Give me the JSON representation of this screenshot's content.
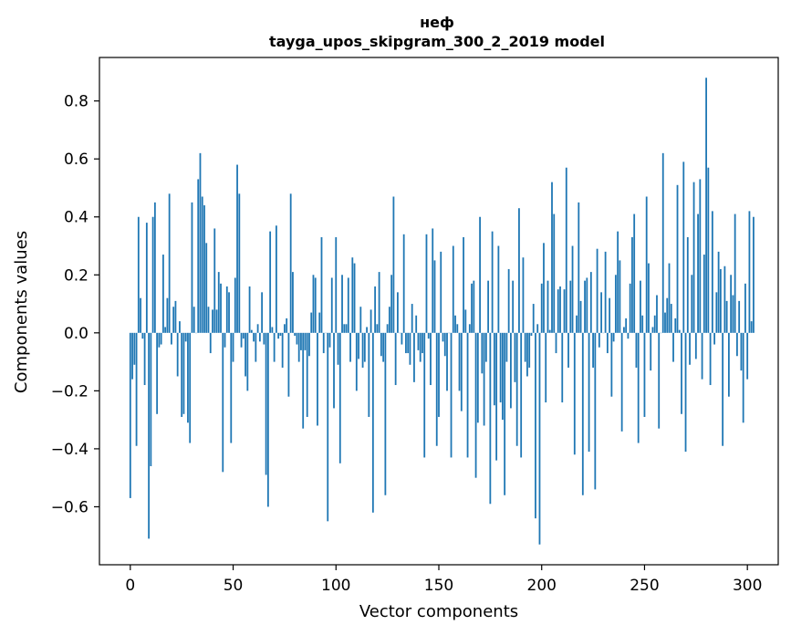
{
  "chart_data": {
    "type": "bar",
    "title": "неф",
    "subtitle": "tayga_upos_skipgram_300_2_2019 model",
    "xlabel": "Vector components",
    "ylabel": "Components values",
    "xlim": [
      -15,
      315
    ],
    "ylim": [
      -0.8,
      0.95
    ],
    "xticks": [
      0,
      50,
      100,
      150,
      200,
      250,
      300
    ],
    "yticks": [
      -0.6,
      -0.4,
      -0.2,
      0.0,
      0.2,
      0.4,
      0.6,
      0.8
    ],
    "ytick_labels": [
      "−0.6",
      "−0.4",
      "−0.2",
      "0.0",
      "0.2",
      "0.4",
      "0.6",
      "0.8"
    ],
    "bar_color": "#1f77b4",
    "grid": false,
    "values": [
      -0.57,
      -0.16,
      -0.11,
      -0.39,
      0.4,
      0.12,
      -0.02,
      -0.18,
      0.38,
      -0.71,
      -0.46,
      0.4,
      0.45,
      -0.28,
      -0.05,
      -0.04,
      0.27,
      0.02,
      0.12,
      0.48,
      -0.04,
      0.09,
      0.11,
      -0.15,
      0.04,
      -0.29,
      -0.28,
      -0.03,
      -0.31,
      -0.38,
      0.45,
      0.09,
      0.0,
      0.53,
      0.62,
      0.47,
      0.44,
      0.31,
      0.09,
      -0.07,
      0.08,
      0.36,
      0.08,
      0.21,
      0.17,
      -0.48,
      -0.05,
      0.16,
      0.14,
      -0.38,
      -0.1,
      0.19,
      0.58,
      0.48,
      -0.05,
      -0.02,
      -0.15,
      -0.2,
      0.16,
      0.01,
      -0.03,
      -0.1,
      0.03,
      -0.03,
      0.14,
      -0.04,
      -0.49,
      -0.6,
      0.35,
      0.02,
      -0.1,
      0.37,
      -0.02,
      -0.01,
      -0.12,
      0.03,
      0.05,
      -0.22,
      0.48,
      0.21,
      -0.01,
      -0.04,
      -0.1,
      -0.06,
      -0.33,
      -0.06,
      -0.29,
      -0.08,
      0.07,
      0.2,
      0.19,
      -0.32,
      0.07,
      0.33,
      -0.07,
      0.0,
      -0.65,
      -0.05,
      0.19,
      -0.26,
      0.33,
      -0.11,
      -0.45,
      0.2,
      0.03,
      0.03,
      0.19,
      -0.1,
      0.26,
      0.24,
      -0.2,
      -0.09,
      0.09,
      -0.12,
      -0.1,
      0.02,
      -0.29,
      0.08,
      -0.62,
      0.16,
      0.03,
      0.21,
      -0.08,
      -0.1,
      -0.56,
      0.03,
      0.09,
      0.2,
      0.47,
      -0.18,
      0.14,
      0.0,
      -0.04,
      0.34,
      -0.07,
      -0.07,
      -0.11,
      0.1,
      -0.17,
      0.06,
      -0.06,
      -0.1,
      -0.07,
      -0.43,
      0.34,
      -0.02,
      -0.18,
      0.36,
      0.25,
      -0.39,
      -0.29,
      0.28,
      -0.03,
      -0.08,
      -0.2,
      0.0,
      -0.43,
      0.3,
      0.06,
      0.03,
      -0.2,
      -0.27,
      0.33,
      0.08,
      -0.43,
      0.03,
      0.17,
      0.18,
      -0.5,
      -0.31,
      0.4,
      -0.14,
      -0.32,
      -0.1,
      0.18,
      -0.59,
      0.35,
      -0.25,
      -0.44,
      0.3,
      -0.24,
      -0.3,
      -0.56,
      -0.1,
      0.22,
      -0.26,
      0.18,
      -0.17,
      -0.39,
      0.43,
      -0.43,
      0.26,
      -0.1,
      -0.15,
      -0.12,
      -0.01,
      0.1,
      -0.64,
      0.03,
      -0.73,
      0.17,
      0.31,
      -0.24,
      0.18,
      0.01,
      0.52,
      0.41,
      -0.07,
      0.15,
      0.16,
      -0.24,
      0.15,
      0.57,
      -0.12,
      0.18,
      0.3,
      -0.42,
      0.06,
      0.45,
      0.11,
      -0.56,
      0.18,
      0.19,
      -0.41,
      0.21,
      -0.12,
      -0.54,
      0.29,
      -0.05,
      0.14,
      0.0,
      0.28,
      -0.07,
      0.12,
      -0.22,
      -0.03,
      0.2,
      0.35,
      0.25,
      -0.34,
      0.02,
      0.05,
      -0.02,
      0.17,
      0.33,
      0.41,
      -0.12,
      -0.38,
      0.18,
      0.06,
      -0.29,
      0.47,
      0.24,
      -0.13,
      0.02,
      0.06,
      0.13,
      -0.33,
      0.0,
      0.62,
      0.07,
      0.12,
      0.24,
      0.1,
      -0.1,
      0.05,
      0.51,
      0.01,
      -0.28,
      0.59,
      -0.41,
      0.33,
      -0.11,
      0.2,
      0.52,
      -0.09,
      0.41,
      0.53,
      -0.16,
      0.27,
      0.88,
      0.57,
      -0.18,
      0.42,
      -0.04,
      0.14,
      0.28,
      0.22,
      -0.39,
      0.23,
      0.11,
      -0.22,
      0.2,
      0.13,
      0.41,
      -0.08,
      0.11,
      -0.13,
      -0.31,
      0.17,
      -0.16,
      0.42,
      0.04,
      0.4
    ]
  }
}
